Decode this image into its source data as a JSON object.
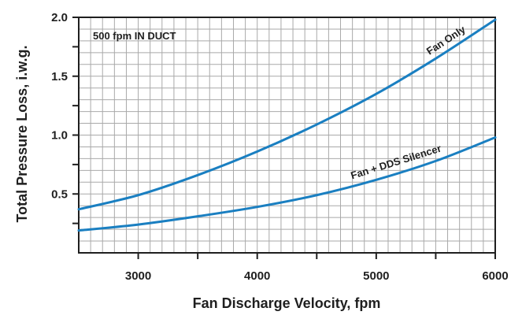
{
  "chart_data": {
    "type": "line",
    "title": "",
    "xlabel": "Fan Discharge Velocity, fpm",
    "ylabel": "Total Pressure Loss, i.w.g.",
    "xlim": [
      2500,
      6000
    ],
    "ylim": [
      0,
      2.0
    ],
    "x_ticks": [
      3000,
      4000,
      5000,
      6000
    ],
    "x_tick_labels": [
      "3000",
      "4000",
      "5000",
      "6000"
    ],
    "y_ticks": [
      0.5,
      1.0,
      1.5,
      2.0
    ],
    "y_tick_labels": [
      "0.5",
      "1.0",
      "1.5",
      "2.0"
    ],
    "grid": true,
    "annotation": "500 fpm IN DUCT",
    "line_color": "#1a7fc1",
    "series": [
      {
        "name": "Fan Only",
        "x": [
          2500,
          3000,
          3500,
          4000,
          4500,
          5000,
          5500,
          6000
        ],
        "y": [
          0.37,
          0.49,
          0.66,
          0.86,
          1.09,
          1.35,
          1.65,
          1.98
        ]
      },
      {
        "name": "Fan + DDS Silencer",
        "x": [
          2500,
          3000,
          3500,
          4000,
          4500,
          5000,
          5500,
          6000
        ],
        "y": [
          0.19,
          0.24,
          0.31,
          0.39,
          0.49,
          0.62,
          0.78,
          0.98
        ]
      }
    ]
  }
}
